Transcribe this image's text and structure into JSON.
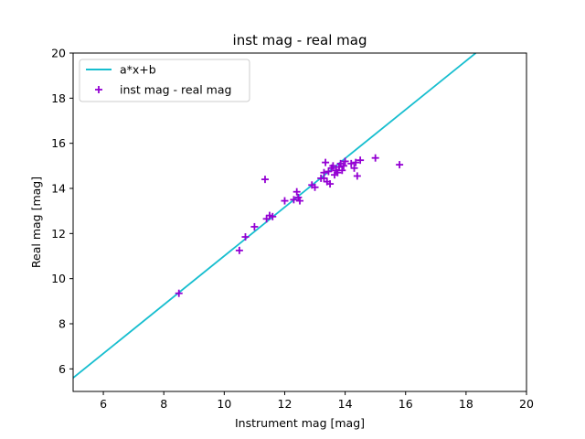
{
  "chart_data": {
    "type": "scatter",
    "title": "inst mag - real mag",
    "xlabel": "Instrument mag [mag]",
    "ylabel": "Real mag [mag]",
    "xlim": [
      5,
      20
    ],
    "ylim": [
      5,
      20
    ],
    "xticks": [
      6,
      8,
      10,
      12,
      14,
      16,
      18,
      20
    ],
    "yticks": [
      6,
      8,
      10,
      12,
      14,
      16,
      18,
      20
    ],
    "grid": false,
    "legend_position": "top-left",
    "series": [
      {
        "name": "a*x+b",
        "kind": "line",
        "color": "#17becf",
        "x": [
          5.0,
          18.32
        ],
        "y": [
          5.6,
          20.0
        ]
      },
      {
        "name": "inst mag - real mag",
        "kind": "scatter",
        "marker": "+",
        "color": "#9400d3",
        "x": [
          8.5,
          10.5,
          10.7,
          11.0,
          11.35,
          11.4,
          11.5,
          11.6,
          12.0,
          12.3,
          12.4,
          12.45,
          12.5,
          12.9,
          13.0,
          13.2,
          13.3,
          13.3,
          13.35,
          13.4,
          13.45,
          13.5,
          13.55,
          13.6,
          13.65,
          13.7,
          13.75,
          13.8,
          13.85,
          13.9,
          13.95,
          14.0,
          14.2,
          14.3,
          14.35,
          14.4,
          14.5,
          15.0,
          15.8
        ],
        "y": [
          9.35,
          11.25,
          11.85,
          12.3,
          14.4,
          12.65,
          12.8,
          12.75,
          13.45,
          13.5,
          13.85,
          13.6,
          13.45,
          14.15,
          14.05,
          14.45,
          14.7,
          14.45,
          15.15,
          14.3,
          14.75,
          14.2,
          14.9,
          15.0,
          14.6,
          14.8,
          14.7,
          14.95,
          15.1,
          14.8,
          15.0,
          15.2,
          15.1,
          14.9,
          15.15,
          14.55,
          15.25,
          15.35,
          15.05
        ]
      }
    ]
  }
}
